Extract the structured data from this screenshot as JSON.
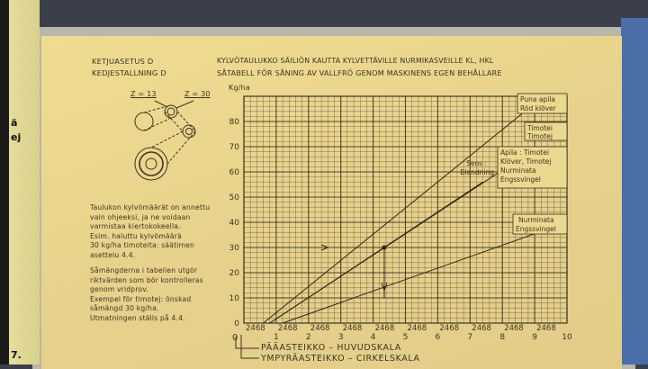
{
  "header": {
    "left_line1": "KETJUASETUS D",
    "left_line2": "KEDJESTALLNING D",
    "title_fi": "KYLVÖTAULUKKO  SÄILIÖN KAUTTA KYLVETTÄVILLE NURMIKASVEILLE KL, HKL",
    "title_sv": "SÅTABELL FÖR SÅNING AV VALLFRÖ GENOM MASKINENS EGEN BEHÅLLARE"
  },
  "diagram": {
    "gear_left": "Z = 13",
    "gear_right": "Z = 30"
  },
  "notes": {
    "fi": [
      "Taulukon kylvömäärät on annettu",
      "vain ohjeeksi, ja ne voidaan",
      "varmistaa kiertokokeella.",
      "Esim. haluttu kylvömäärä",
      "30 kg/ha timoteita: säätimen",
      "asettelu 4.4."
    ],
    "sv": [
      "Såmängderna i tabellen utgör",
      "riktvärden som bör kontrolleras",
      "genom vridprov.",
      "Exempel för timotej: önskad",
      "såmängd 30 kg/ha.",
      "Utmatningen ställs på 4.4."
    ]
  },
  "scale_legend": {
    "zero": "0",
    "main": "PÄÄASTEIKKO – HUVUDSKALA",
    "circle": "YMPYRÄASTEIKKO – CIRKELSKALA"
  },
  "chart_data": {
    "type": "line",
    "ylabel": "Kg/ha",
    "xlim": [
      0,
      10
    ],
    "ylim": [
      0,
      90
    ],
    "yticks": [
      "0",
      "10",
      "20",
      "30",
      "40",
      "50",
      "60",
      "70",
      "80"
    ],
    "xticks": [
      "1",
      "2",
      "3",
      "4",
      "5",
      "6",
      "7",
      "8",
      "9",
      "10"
    ],
    "minor_tick_label": "2468",
    "grid": true,
    "series": [
      {
        "name": "Puna apila / Röd klöver",
        "points": [
          [
            0.6,
            0
          ],
          [
            8.6,
            83
          ]
        ]
      },
      {
        "name": "Timotei / Timotej",
        "points": [
          [
            0.8,
            0
          ],
          [
            9.1,
            70
          ]
        ]
      },
      {
        "name": "Seos: Blandning",
        "points": [
          [
            0.8,
            0
          ],
          [
            7.4,
            56
          ]
        ]
      },
      {
        "name": "Nurminata / Engssvingel",
        "points": [
          [
            1.2,
            0
          ],
          [
            10,
            40
          ]
        ]
      }
    ],
    "labels": {
      "red_clover": [
        "Puna apila",
        "Röd klöver"
      ],
      "timothy": [
        "Timotei",
        "Timotej"
      ],
      "mix_head": [
        "Seos :",
        "Blandning"
      ],
      "mix_parts": [
        "Apila : Timotei",
        "Klöver, Timotej",
        "Nurminata",
        "Engssvingel"
      ],
      "meadow_fescue": [
        "Nurminata",
        "Engssvingel"
      ]
    },
    "example": {
      "y": 30,
      "x": 4.4
    }
  },
  "edge_text": [
    "ä",
    "ej",
    "7."
  ],
  "colors": {
    "paper": "#ecd88e",
    "ink": "#3a3528"
  }
}
